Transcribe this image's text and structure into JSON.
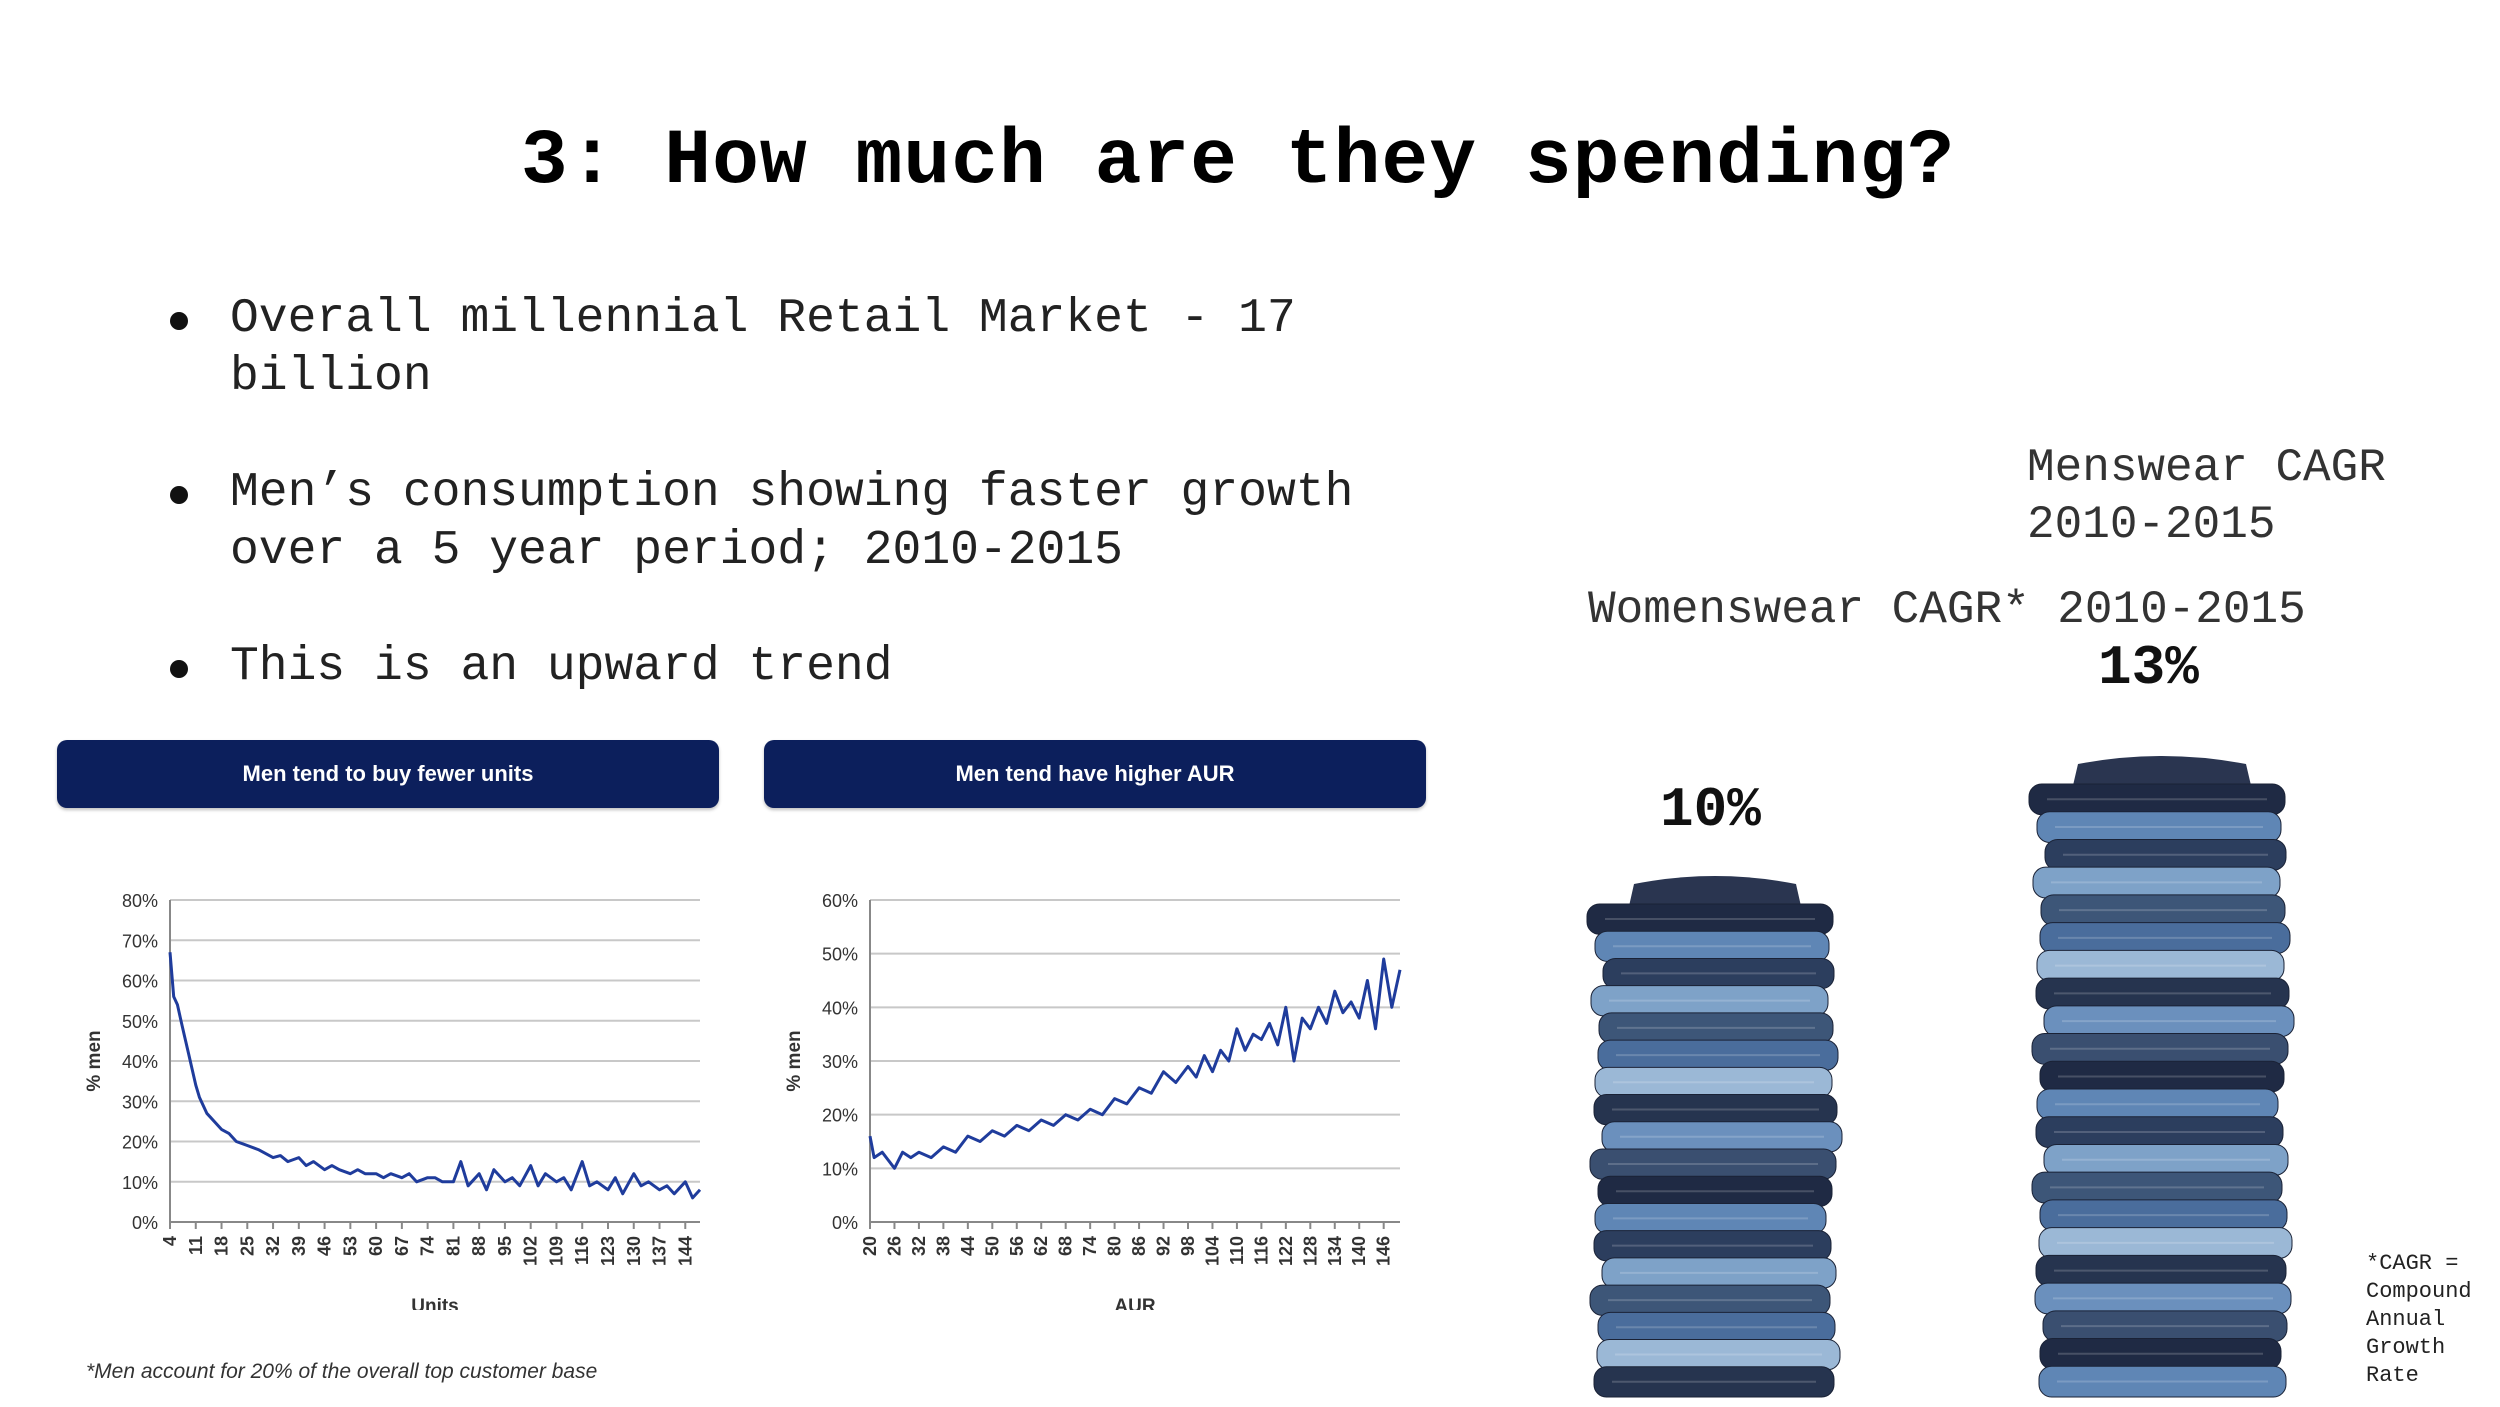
{
  "slide": {
    "title": "3: How much are they spending?",
    "bullets": [
      "Overall millennial Retail Market - 17 billion",
      "Men’s consumption showing faster growth over a 5 year period; 2010-2015",
      "This is an upward trend"
    ],
    "footnote": "*Men account for 20% of the overall top customer base",
    "cagr_note": "*CAGR = Compound Annual Growth Rate"
  },
  "womenswear": {
    "label": "Womenswear CAGR* 2010-2015",
    "value": "10%"
  },
  "menswear": {
    "label": "Menswear CAGR 2010-2015",
    "value": "13%"
  },
  "chart_data": [
    {
      "type": "line",
      "title": "Men tend to buy fewer units",
      "xlabel": "Units",
      "ylabel": "% men",
      "ylim": [
        0,
        80
      ],
      "yticks": [
        "0%",
        "10%",
        "20%",
        "30%",
        "40%",
        "50%",
        "60%",
        "70%",
        "80%"
      ],
      "xticks": [
        "4",
        "11",
        "18",
        "25",
        "32",
        "39",
        "46",
        "53",
        "60",
        "67",
        "74",
        "81",
        "88",
        "95",
        "102",
        "109",
        "116",
        "123",
        "130",
        "137",
        "144"
      ],
      "xlim": [
        4,
        148
      ],
      "grid": "horizontal",
      "color": "#1f3c9c",
      "series": [
        {
          "x": [
            4,
            5,
            6,
            7,
            8,
            9,
            10,
            11,
            12,
            13,
            14,
            15,
            16,
            18,
            20,
            22,
            25,
            28,
            30,
            32,
            34,
            36,
            39,
            41,
            43,
            46,
            48,
            50,
            53,
            55,
            57,
            60,
            62,
            64,
            67,
            69,
            71,
            74,
            76,
            78,
            81,
            83,
            85,
            88,
            90,
            92,
            95,
            97,
            99,
            102,
            104,
            106,
            109,
            111,
            113,
            116,
            118,
            120,
            123,
            125,
            127,
            130,
            132,
            134,
            137,
            139,
            141,
            144,
            146,
            148
          ],
          "y": [
            67,
            56,
            54,
            50,
            46,
            42,
            38,
            34,
            31,
            29,
            27,
            26,
            25,
            23,
            22,
            20,
            19,
            18,
            17,
            16,
            16.5,
            15,
            16,
            14,
            15,
            13,
            14,
            13,
            12,
            13,
            12,
            12,
            11,
            12,
            11,
            12,
            10,
            11,
            11,
            10,
            10,
            15,
            9,
            12,
            8,
            13,
            10,
            11,
            9,
            14,
            9,
            12,
            10,
            11,
            8,
            15,
            9,
            10,
            8,
            11,
            7,
            12,
            9,
            10,
            8,
            9,
            7,
            10,
            6,
            8
          ]
        }
      ]
    },
    {
      "type": "line",
      "title": "Men tend have higher AUR",
      "xlabel": "AUR",
      "ylabel": "% men",
      "ylim": [
        0,
        60
      ],
      "yticks": [
        "0%",
        "10%",
        "20%",
        "30%",
        "40%",
        "50%",
        "60%"
      ],
      "xticks": [
        "20",
        "26",
        "32",
        "38",
        "44",
        "50",
        "56",
        "62",
        "68",
        "74",
        "80",
        "86",
        "92",
        "98",
        "104",
        "110",
        "116",
        "122",
        "128",
        "134",
        "140",
        "146"
      ],
      "xlim": [
        20,
        150
      ],
      "grid": "horizontal",
      "color": "#1f3c9c",
      "series": [
        {
          "x": [
            20,
            21,
            23,
            26,
            28,
            30,
            32,
            35,
            38,
            41,
            44,
            47,
            50,
            53,
            56,
            59,
            62,
            65,
            68,
            71,
            74,
            77,
            80,
            83,
            86,
            89,
            92,
            95,
            98,
            100,
            102,
            104,
            106,
            108,
            110,
            112,
            114,
            116,
            118,
            120,
            122,
            124,
            126,
            128,
            130,
            132,
            134,
            136,
            138,
            140,
            142,
            144,
            146,
            148,
            150
          ],
          "y": [
            16,
            12,
            13,
            10,
            13,
            12,
            13,
            12,
            14,
            13,
            16,
            15,
            17,
            16,
            18,
            17,
            19,
            18,
            20,
            19,
            21,
            20,
            23,
            22,
            25,
            24,
            28,
            26,
            29,
            27,
            31,
            28,
            32,
            30,
            36,
            32,
            35,
            34,
            37,
            33,
            40,
            30,
            38,
            36,
            40,
            37,
            43,
            39,
            41,
            38,
            45,
            36,
            49,
            40,
            47
          ]
        }
      ]
    }
  ]
}
